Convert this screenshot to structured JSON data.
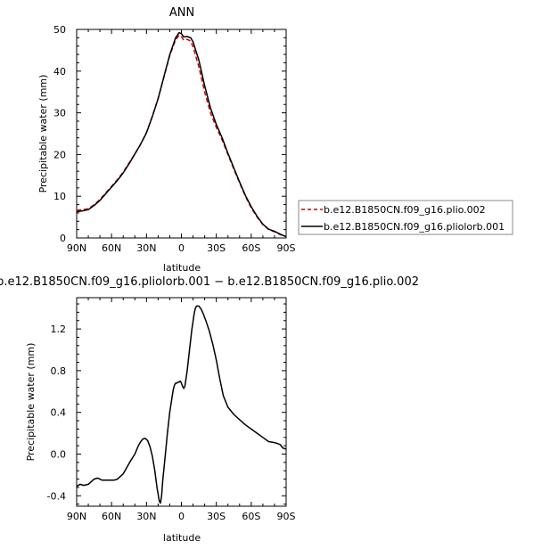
{
  "chart_data": [
    {
      "type": "line",
      "title": "ANN",
      "xlabel": "latitude",
      "ylabel": "Precipitable water (mm)",
      "xlim": [
        90,
        -90
      ],
      "ylim": [
        0,
        50
      ],
      "x_ticks": [
        90,
        60,
        30,
        0,
        -30,
        -60,
        -90
      ],
      "x_tick_labels": [
        "90N",
        "60N",
        "30N",
        "0",
        "30S",
        "60S",
        "90S"
      ],
      "y_ticks": [
        0,
        10,
        20,
        30,
        40,
        50
      ],
      "y_tick_labels": [
        "0",
        "10",
        "20",
        "30",
        "40",
        "50"
      ],
      "legend_position": "right",
      "series": [
        {
          "name": "b.e12.B1850CN.f09_g16.plio.002",
          "color": "#cc0000",
          "dash": "dashed",
          "x": [
            90,
            85,
            80,
            75,
            70,
            65,
            60,
            55,
            50,
            45,
            40,
            35,
            30,
            25,
            20,
            15,
            10,
            5,
            2,
            0,
            -2,
            -5,
            -8,
            -10,
            -15,
            -20,
            -25,
            -30,
            -35,
            -40,
            -45,
            -50,
            -55,
            -60,
            -65,
            -70,
            -75,
            -80,
            -85,
            -90
          ],
          "y": [
            6.6,
            6.8,
            7.0,
            8.0,
            9.2,
            10.8,
            12.4,
            14.0,
            15.8,
            18.0,
            20.2,
            22.5,
            25.3,
            29.2,
            33.5,
            38.6,
            43.7,
            47.5,
            48.6,
            48.3,
            47.4,
            47.6,
            47.2,
            45.8,
            41.0,
            35.0,
            30.0,
            26.5,
            23.5,
            20.0,
            16.5,
            13.2,
            10.0,
            7.2,
            5.0,
            3.2,
            2.0,
            1.5,
            0.8,
            0.3
          ]
        },
        {
          "name": "b.e12.B1850CN.f09_g16.pliolorb.001",
          "color": "#000000",
          "dash": "solid",
          "x": [
            90,
            85,
            80,
            75,
            70,
            65,
            60,
            55,
            50,
            45,
            40,
            35,
            30,
            25,
            20,
            15,
            10,
            5,
            2,
            0,
            -2,
            -5,
            -8,
            -10,
            -15,
            -20,
            -25,
            -30,
            -35,
            -40,
            -45,
            -50,
            -55,
            -60,
            -65,
            -70,
            -75,
            -80,
            -85,
            -90
          ],
          "y": [
            6.3,
            6.5,
            6.8,
            7.8,
            9.0,
            10.6,
            12.2,
            13.8,
            15.6,
            17.8,
            20.1,
            22.5,
            25.2,
            29.1,
            33.4,
            38.7,
            43.9,
            48.0,
            49.2,
            49.0,
            48.2,
            48.3,
            48.0,
            47.0,
            42.6,
            36.5,
            31.2,
            27.2,
            24.0,
            20.3,
            16.8,
            13.4,
            10.2,
            7.5,
            5.2,
            3.3,
            2.1,
            1.6,
            0.9,
            0.3
          ]
        }
      ]
    },
    {
      "type": "line",
      "title": "b.e12.B1850CN.f09_g16.pliolorb.001 − b.e12.B1850CN.f09_g16.plio.002",
      "xlabel": "latitude",
      "ylabel": "Precipitable water (mm)",
      "xlim": [
        90,
        -90
      ],
      "ylim": [
        -0.5,
        1.5
      ],
      "x_ticks": [
        90,
        60,
        30,
        0,
        -30,
        -60,
        -90
      ],
      "x_tick_labels": [
        "90N",
        "60N",
        "30N",
        "0",
        "30S",
        "60S",
        "90S"
      ],
      "y_ticks": [
        -0.4,
        0.0,
        0.4,
        0.8,
        1.2
      ],
      "y_tick_labels": [
        "-0.4",
        "0.0",
        "0.4",
        "0.8",
        "1.2"
      ],
      "series": [
        {
          "color": "#000000",
          "x": [
            90,
            87,
            84,
            80,
            78,
            75,
            72,
            68,
            65,
            62,
            58,
            55,
            50,
            47,
            44,
            40,
            37,
            35,
            33,
            31,
            29,
            27,
            25,
            23,
            21,
            19,
            18,
            17,
            16,
            14,
            12,
            10,
            8,
            7,
            6,
            5,
            4,
            3,
            2,
            1,
            0,
            -1,
            -2,
            -3,
            -5,
            -7,
            -9,
            -11,
            -12,
            -13,
            -15,
            -17,
            -19,
            -21,
            -24,
            -27,
            -30,
            -33,
            -36,
            -40,
            -45,
            -50,
            -55,
            -60,
            -65,
            -70,
            -75,
            -80,
            -83,
            -85,
            -87,
            -89,
            -90
          ],
          "y": [
            -0.31,
            -0.29,
            -0.3,
            -0.29,
            -0.27,
            -0.24,
            -0.23,
            -0.25,
            -0.25,
            -0.25,
            -0.25,
            -0.24,
            -0.19,
            -0.13,
            -0.07,
            0.0,
            0.08,
            0.12,
            0.145,
            0.15,
            0.13,
            0.07,
            -0.02,
            -0.15,
            -0.32,
            -0.45,
            -0.47,
            -0.4,
            -0.25,
            -0.03,
            0.2,
            0.4,
            0.55,
            0.62,
            0.66,
            0.68,
            0.68,
            0.69,
            0.69,
            0.7,
            0.68,
            0.65,
            0.63,
            0.65,
            0.8,
            1.0,
            1.2,
            1.35,
            1.4,
            1.42,
            1.42,
            1.39,
            1.34,
            1.28,
            1.18,
            1.05,
            0.9,
            0.72,
            0.56,
            0.45,
            0.38,
            0.33,
            0.28,
            0.24,
            0.2,
            0.16,
            0.12,
            0.11,
            0.1,
            0.09,
            0.06,
            0.05,
            0.05
          ]
        }
      ]
    }
  ]
}
